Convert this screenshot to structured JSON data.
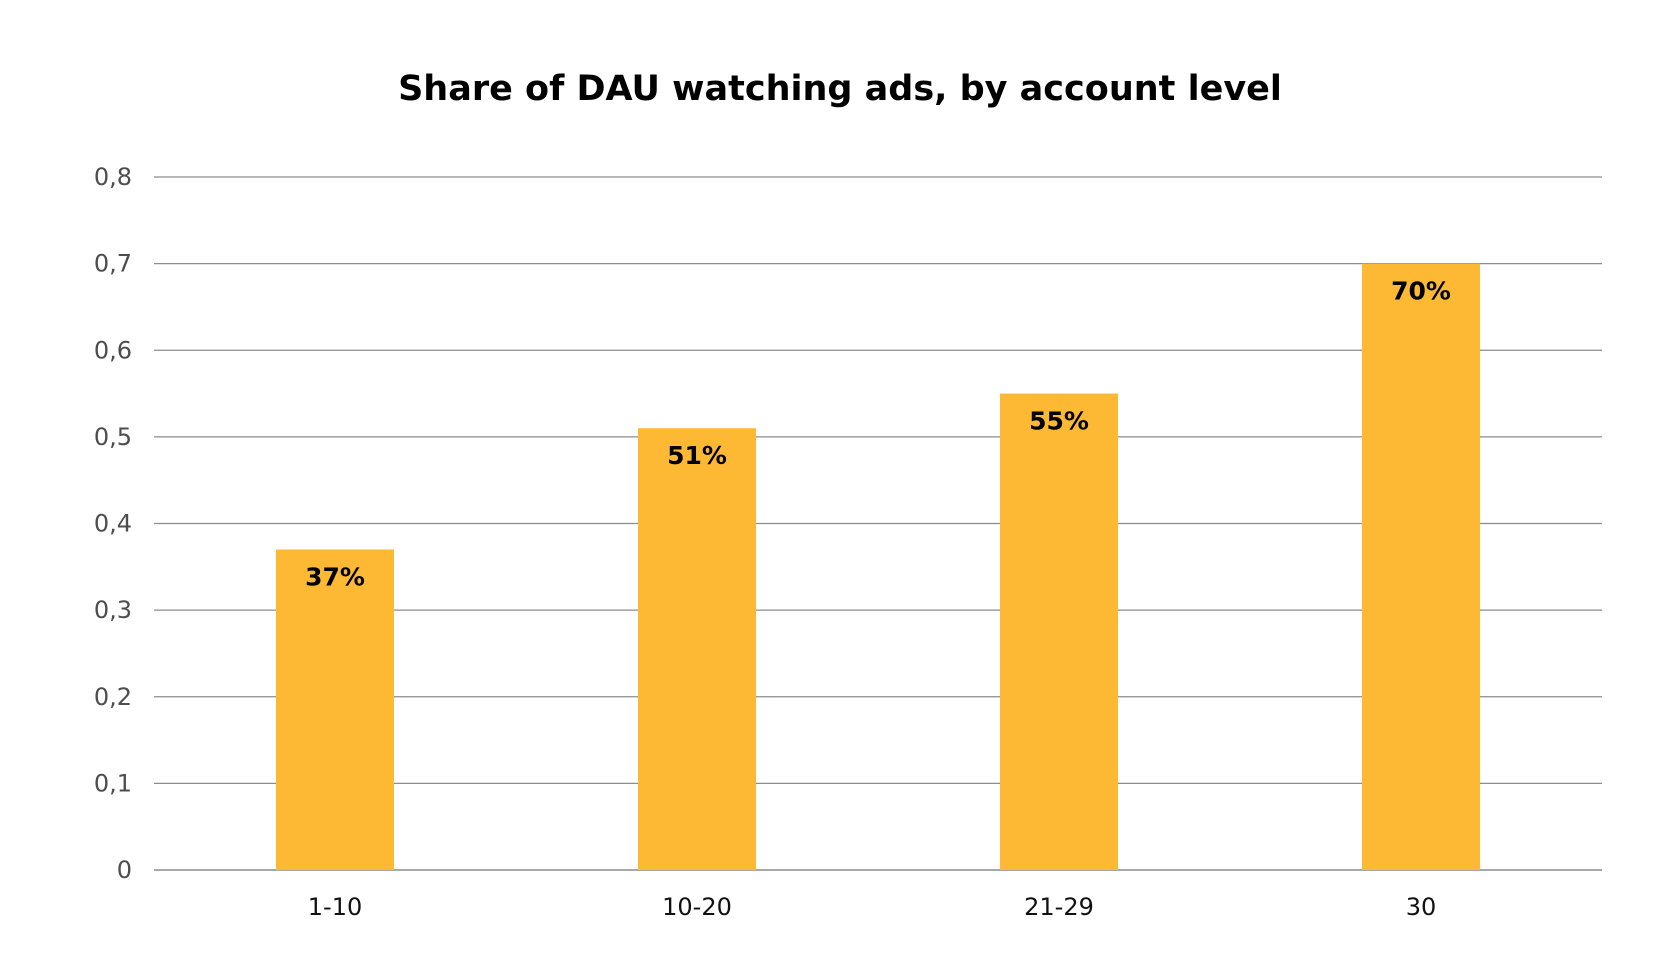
{
  "chart_data": {
    "type": "bar",
    "title": "Share of DAU watching ads, by account level",
    "categories": [
      "1-10",
      "10-20",
      "21-29",
      "30"
    ],
    "values": [
      0.37,
      0.51,
      0.55,
      0.7
    ],
    "data_labels": [
      "37%",
      "51%",
      "55%",
      "70%"
    ],
    "ylim": [
      0,
      0.8
    ],
    "yticks": [
      0,
      0.1,
      0.2,
      0.3,
      0.4,
      0.5,
      0.6,
      0.7,
      0.8
    ],
    "ytick_labels": [
      "0",
      "0,1",
      "0,2",
      "0,3",
      "0,4",
      "0,5",
      "0,6",
      "0,7",
      "0,8"
    ],
    "xlabel": "",
    "ylabel": "",
    "grid": true,
    "legend": "none",
    "colors": {
      "bar": "#FDB933",
      "grid": "#8c8c8c",
      "tick_text": "#4d4d4d",
      "category_text": "#111111",
      "title_text": "#000000"
    }
  }
}
